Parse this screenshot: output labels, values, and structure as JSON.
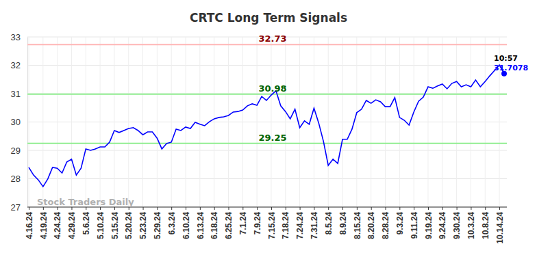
{
  "chart_data": {
    "type": "line",
    "title": "CRTC Long Term Signals",
    "categories": [
      "4.16.24",
      null,
      null,
      "4.19.24",
      null,
      null,
      "4.24.24",
      null,
      null,
      "4.29.24",
      null,
      null,
      "5.6.24",
      null,
      null,
      "5.10.24",
      null,
      null,
      "5.15.24",
      null,
      null,
      "5.20.24",
      null,
      null,
      "5.23.24",
      null,
      null,
      "5.29.24",
      null,
      null,
      "6.3.24",
      null,
      null,
      "6.10.24",
      null,
      null,
      "6.13.24",
      null,
      null,
      "6.18.24",
      null,
      null,
      "6.25.24",
      null,
      null,
      "7.1.24",
      null,
      null,
      "7.9.24",
      null,
      null,
      "7.15.24",
      null,
      null,
      "7.18.24",
      null,
      null,
      "7.24.24",
      null,
      null,
      "7.31.24",
      null,
      null,
      "8.5.24",
      null,
      null,
      "8.9.24",
      null,
      null,
      "8.15.24",
      null,
      null,
      "8.20.24",
      null,
      null,
      "8.28.24",
      null,
      null,
      "9.3.24",
      null,
      null,
      "9.11.24",
      null,
      null,
      "9.19.24",
      null,
      null,
      "9.24.24",
      null,
      null,
      "9.30.24",
      null,
      null,
      "10.3.24",
      null,
      null,
      "10.8.24",
      null,
      null,
      "10.14.24",
      null
    ],
    "series": [
      {
        "name": "CRTC",
        "color": "#0000ff",
        "values": [
          28.4,
          28.13,
          27.96,
          27.72,
          27.99,
          28.4,
          28.37,
          28.2,
          28.59,
          28.69,
          28.13,
          28.37,
          29.05,
          29.0,
          29.05,
          29.12,
          29.12,
          29.29,
          29.7,
          29.63,
          29.7,
          29.77,
          29.8,
          29.7,
          29.55,
          29.65,
          29.65,
          29.43,
          29.05,
          29.24,
          29.29,
          29.75,
          29.7,
          29.82,
          29.77,
          29.99,
          29.92,
          29.87,
          30.01,
          30.11,
          30.16,
          30.18,
          30.23,
          30.35,
          30.37,
          30.42,
          30.57,
          30.64,
          30.59,
          30.9,
          30.76,
          30.95,
          31.1,
          30.57,
          30.37,
          30.11,
          30.45,
          29.8,
          30.04,
          29.92,
          30.49,
          29.96,
          29.31,
          28.47,
          28.69,
          28.54,
          29.39,
          29.39,
          29.75,
          30.33,
          30.45,
          30.76,
          30.66,
          30.78,
          30.71,
          30.54,
          30.54,
          30.86,
          30.16,
          30.06,
          29.89,
          30.35,
          30.73,
          30.88,
          31.24,
          31.19,
          31.27,
          31.34,
          31.17,
          31.36,
          31.43,
          31.24,
          31.31,
          31.24,
          31.48,
          31.24,
          31.43,
          31.63,
          31.82,
          32.01,
          31.7078
        ]
      }
    ],
    "hlines": [
      {
        "value": 32.73,
        "color": "#ffb6b6",
        "label_color": "#8b0000"
      },
      {
        "value": 30.98,
        "color": "#90ee90",
        "label_color": "#006400"
      },
      {
        "value": 29.25,
        "color": "#90ee90",
        "label_color": "#006400"
      }
    ],
    "annotations": [
      {
        "text": "10:57"
      },
      {
        "text": "Stock Traders Daily"
      }
    ],
    "ylim": [
      27,
      33
    ],
    "yticks": [
      27,
      28,
      29,
      30,
      31,
      32,
      33
    ],
    "grid": true,
    "marker": "circle"
  }
}
